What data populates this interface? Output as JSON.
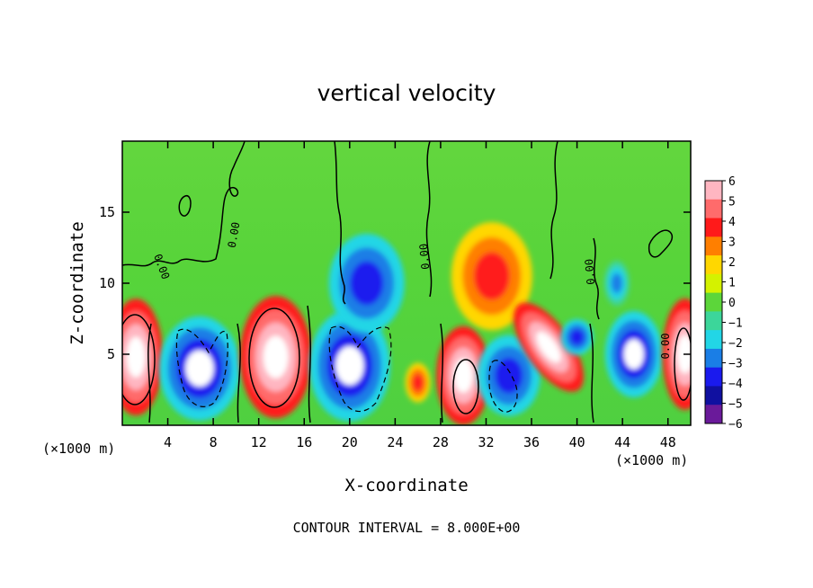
{
  "chart_data": {
    "type": "heatmap",
    "title": "vertical velocity",
    "xlabel": "X-coordinate",
    "ylabel": "Z-coordinate",
    "x_unit": "(×1000 m)",
    "x_ticks": [
      "4",
      "8",
      "12",
      "16",
      "20",
      "24",
      "28",
      "32",
      "36",
      "40",
      "44",
      "48"
    ],
    "x_tick_values": [
      4,
      8,
      12,
      16,
      20,
      24,
      28,
      32,
      36,
      40,
      44,
      48
    ],
    "y_ticks": [
      "5",
      "10",
      "15"
    ],
    "y_tick_values": [
      5,
      10,
      15
    ],
    "xlim": [
      0,
      50
    ],
    "ylim": [
      0,
      20
    ],
    "colorbar": {
      "labels": [
        "6",
        "5",
        "4",
        "3",
        "2",
        "1",
        "0",
        "−1",
        "−2",
        "−3",
        "−4",
        "−5",
        "−6"
      ],
      "colors": [
        "#ffb6c1",
        "#ff6b6b",
        "#ff1a1a",
        "#ff7f00",
        "#ffd700",
        "#d4f200",
        "#5cd63a",
        "#3cd69a",
        "#22d6e6",
        "#1a7ee6",
        "#1a1aee",
        "#1010a0",
        "#6a1a9a"
      ]
    },
    "contour_label": "0.00",
    "contour_interval_text": "CONTOUR INTERVAL = 8.000E+00",
    "features": [
      {
        "x": 1.2,
        "z": 4.8,
        "w": 6
      },
      {
        "x": 6.8,
        "z": 4.0,
        "w": -6
      },
      {
        "x": 13.5,
        "z": 4.8,
        "w": 6
      },
      {
        "x": 20.0,
        "z": 4.2,
        "w": -6
      },
      {
        "x": 21.5,
        "z": 10.0,
        "w": -4
      },
      {
        "x": 26.0,
        "z": 3.0,
        "w": 4
      },
      {
        "x": 30.0,
        "z": 3.5,
        "w": 6
      },
      {
        "x": 32.5,
        "z": 10.5,
        "w": 4
      },
      {
        "x": 34.0,
        "z": 3.5,
        "w": -5
      },
      {
        "x": 37.5,
        "z": 5.5,
        "w": 6
      },
      {
        "x": 40.0,
        "z": 6.2,
        "w": -4
      },
      {
        "x": 43.5,
        "z": 10.0,
        "w": -2
      },
      {
        "x": 45.0,
        "z": 5.0,
        "w": -6
      },
      {
        "x": 49.5,
        "z": 5.0,
        "w": 6
      }
    ]
  }
}
